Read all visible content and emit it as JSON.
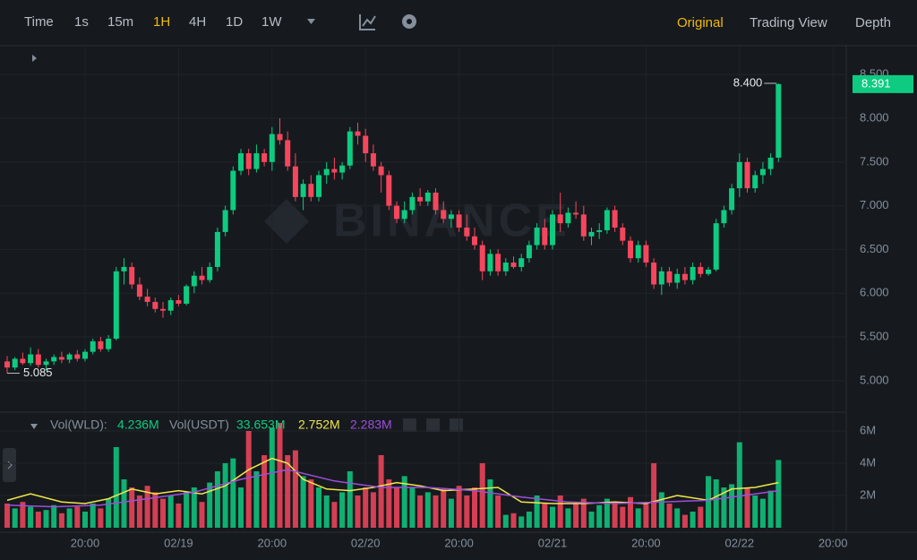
{
  "toolbar": {
    "intervals": [
      {
        "label": "Time"
      },
      {
        "label": "1s"
      },
      {
        "label": "15m"
      },
      {
        "label": "1H",
        "active": true
      },
      {
        "label": "4H"
      },
      {
        "label": "1D"
      },
      {
        "label": "1W"
      }
    ],
    "views": [
      {
        "label": "Original",
        "active": true
      },
      {
        "label": "Trading View"
      },
      {
        "label": "Depth"
      }
    ]
  },
  "chart_data": {
    "type": "candlestick",
    "watermark": "BINANCE",
    "up_color": "#0ecb81",
    "down_color": "#f6465d",
    "grid": true,
    "xlim": [
      -0.92,
      107.7
    ],
    "xticks": [
      {
        "value": 10,
        "label": "20:00"
      },
      {
        "value": 22,
        "label": "02/19"
      },
      {
        "value": 34,
        "label": "20:00"
      },
      {
        "value": 46,
        "label": "02/20"
      },
      {
        "value": 58,
        "label": "20:00"
      },
      {
        "value": 70,
        "label": "02/21"
      },
      {
        "value": 82,
        "label": "20:00"
      },
      {
        "value": 94,
        "label": "02/22"
      },
      {
        "value": 106,
        "label": "20:00"
      }
    ],
    "ylim": [
      4.66,
      8.82
    ],
    "yticks": [
      {
        "value": 5,
        "label": "5.000"
      },
      {
        "value": 5.5,
        "label": "5.500"
      },
      {
        "value": 6,
        "label": "6.000"
      },
      {
        "value": 6.5,
        "label": "6.500"
      },
      {
        "value": 7,
        "label": "7.000"
      },
      {
        "value": 7.5,
        "label": "7.500"
      },
      {
        "value": 8,
        "label": "8.000"
      },
      {
        "value": 8.5,
        "label": "8.500"
      }
    ],
    "candles": [
      [
        5.22,
        5.28,
        5.085,
        5.15
      ],
      [
        5.15,
        5.27,
        5.12,
        5.25
      ],
      [
        5.25,
        5.32,
        5.18,
        5.2
      ],
      [
        5.2,
        5.38,
        5.17,
        5.3
      ],
      [
        5.3,
        5.36,
        5.15,
        5.18
      ],
      [
        5.18,
        5.25,
        5.12,
        5.22
      ],
      [
        5.22,
        5.3,
        5.18,
        5.27
      ],
      [
        5.27,
        5.33,
        5.2,
        5.24
      ],
      [
        5.24,
        5.32,
        5.2,
        5.3
      ],
      [
        5.3,
        5.35,
        5.22,
        5.25
      ],
      [
        5.25,
        5.36,
        5.22,
        5.33
      ],
      [
        5.33,
        5.48,
        5.3,
        5.45
      ],
      [
        5.45,
        5.5,
        5.33,
        5.36
      ],
      [
        5.36,
        5.52,
        5.33,
        5.48
      ],
      [
        5.48,
        6.3,
        5.46,
        6.25
      ],
      [
        6.25,
        6.4,
        6.1,
        6.3
      ],
      [
        6.3,
        6.35,
        6.05,
        6.1
      ],
      [
        6.1,
        6.18,
        5.92,
        5.96
      ],
      [
        5.96,
        6.05,
        5.85,
        5.9
      ],
      [
        5.9,
        5.95,
        5.78,
        5.82
      ],
      [
        5.82,
        5.9,
        5.72,
        5.8
      ],
      [
        5.8,
        5.95,
        5.75,
        5.92
      ],
      [
        5.92,
        5.98,
        5.85,
        5.88
      ],
      [
        5.88,
        6.1,
        5.86,
        6.08
      ],
      [
        6.08,
        6.25,
        6.0,
        6.2
      ],
      [
        6.2,
        6.3,
        6.1,
        6.15
      ],
      [
        6.15,
        6.35,
        6.12,
        6.3
      ],
      [
        6.3,
        6.75,
        6.25,
        6.7
      ],
      [
        6.7,
        7.0,
        6.65,
        6.95
      ],
      [
        6.95,
        7.45,
        6.9,
        7.4
      ],
      [
        7.4,
        7.65,
        7.35,
        7.6
      ],
      [
        7.6,
        7.65,
        7.35,
        7.42
      ],
      [
        7.42,
        7.7,
        7.38,
        7.6
      ],
      [
        7.6,
        7.65,
        7.45,
        7.5
      ],
      [
        7.5,
        7.9,
        7.4,
        7.82
      ],
      [
        7.82,
        8.0,
        7.7,
        7.75
      ],
      [
        7.75,
        7.85,
        7.4,
        7.45
      ],
      [
        7.45,
        7.6,
        7.05,
        7.1
      ],
      [
        7.1,
        7.3,
        6.95,
        7.25
      ],
      [
        7.25,
        7.35,
        7.05,
        7.1
      ],
      [
        7.1,
        7.4,
        7.05,
        7.35
      ],
      [
        7.35,
        7.5,
        7.25,
        7.42
      ],
      [
        7.42,
        7.55,
        7.3,
        7.38
      ],
      [
        7.38,
        7.5,
        7.3,
        7.46
      ],
      [
        7.46,
        7.9,
        7.42,
        7.85
      ],
      [
        7.85,
        7.95,
        7.7,
        7.8
      ],
      [
        7.8,
        7.88,
        7.5,
        7.6
      ],
      [
        7.6,
        7.7,
        7.4,
        7.45
      ],
      [
        7.45,
        7.5,
        7.15,
        7.35
      ],
      [
        7.35,
        7.4,
        6.95,
        7.0
      ],
      [
        7.0,
        7.05,
        6.8,
        6.85
      ],
      [
        6.85,
        7.05,
        6.8,
        6.95
      ],
      [
        6.95,
        7.15,
        6.9,
        7.1
      ],
      [
        7.1,
        7.2,
        7.0,
        7.05
      ],
      [
        7.05,
        7.18,
        7.0,
        7.15
      ],
      [
        7.15,
        7.2,
        6.9,
        6.95
      ],
      [
        6.95,
        7.05,
        6.8,
        6.85
      ],
      [
        6.85,
        6.95,
        6.75,
        6.9
      ],
      [
        6.9,
        6.95,
        6.7,
        6.75
      ],
      [
        6.75,
        6.9,
        6.6,
        6.65
      ],
      [
        6.65,
        6.75,
        6.5,
        6.55
      ],
      [
        6.55,
        6.6,
        6.15,
        6.25
      ],
      [
        6.25,
        6.5,
        6.2,
        6.45
      ],
      [
        6.45,
        6.5,
        6.2,
        6.25
      ],
      [
        6.25,
        6.4,
        6.2,
        6.35
      ],
      [
        6.35,
        6.42,
        6.28,
        6.3
      ],
      [
        6.3,
        6.45,
        6.25,
        6.4
      ],
      [
        6.4,
        6.6,
        6.35,
        6.55
      ],
      [
        6.55,
        6.8,
        6.5,
        6.75
      ],
      [
        6.75,
        6.85,
        6.5,
        6.55
      ],
      [
        6.55,
        6.95,
        6.5,
        6.9
      ],
      [
        6.9,
        7.15,
        6.7,
        6.8
      ],
      [
        6.8,
        6.98,
        6.75,
        6.92
      ],
      [
        6.92,
        7.05,
        6.85,
        6.9
      ],
      [
        6.9,
        7.0,
        6.6,
        6.65
      ],
      [
        6.65,
        6.75,
        6.55,
        6.7
      ],
      [
        6.7,
        6.8,
        6.62,
        6.72
      ],
      [
        6.72,
        6.98,
        6.68,
        6.95
      ],
      [
        6.95,
        7.0,
        6.7,
        6.75
      ],
      [
        6.75,
        6.8,
        6.55,
        6.6
      ],
      [
        6.6,
        6.65,
        6.35,
        6.4
      ],
      [
        6.4,
        6.6,
        6.35,
        6.55
      ],
      [
        6.55,
        6.6,
        6.3,
        6.35
      ],
      [
        6.35,
        6.4,
        6.05,
        6.1
      ],
      [
        6.1,
        6.3,
        5.98,
        6.25
      ],
      [
        6.25,
        6.3,
        6.08,
        6.12
      ],
      [
        6.12,
        6.28,
        6.05,
        6.22
      ],
      [
        6.22,
        6.3,
        6.1,
        6.15
      ],
      [
        6.15,
        6.35,
        6.1,
        6.3
      ],
      [
        6.3,
        6.35,
        6.18,
        6.22
      ],
      [
        6.22,
        6.3,
        6.2,
        6.27
      ],
      [
        6.27,
        6.85,
        6.25,
        6.8
      ],
      [
        6.8,
        7.0,
        6.75,
        6.95
      ],
      [
        6.95,
        7.25,
        6.9,
        7.2
      ],
      [
        7.2,
        7.6,
        7.1,
        7.5
      ],
      [
        7.5,
        7.55,
        7.15,
        7.2
      ],
      [
        7.2,
        7.4,
        7.15,
        7.35
      ],
      [
        7.35,
        7.5,
        7.25,
        7.42
      ],
      [
        7.42,
        7.6,
        7.35,
        7.55
      ],
      [
        7.55,
        8.4,
        7.5,
        8.391
      ]
    ],
    "high_annotation": {
      "value": 8.4,
      "label": "8.400"
    },
    "low_annotation": {
      "value": 5.085,
      "label": "5.085"
    },
    "last_price": {
      "value": 8.391,
      "label": "8.391"
    },
    "volume": [
      1.5,
      1.2,
      1.6,
      1.3,
      1.0,
      1.1,
      1.4,
      0.9,
      1.2,
      1.3,
      1.0,
      1.5,
      1.2,
      1.8,
      5.0,
      3.0,
      2.5,
      2.0,
      2.6,
      2.2,
      1.8,
      2.0,
      1.5,
      2.2,
      2.5,
      1.6,
      2.8,
      3.5,
      4.0,
      4.3,
      2.5,
      6.0,
      3.5,
      4.5,
      6.2,
      6.5,
      4.5,
      4.8,
      3.2,
      3.0,
      2.5,
      2.0,
      1.6,
      2.2,
      3.5,
      2.0,
      2.5,
      2.2,
      4.5,
      3.0,
      2.5,
      3.2,
      2.5,
      2.0,
      2.2,
      2.0,
      2.4,
      1.8,
      2.6,
      2.0,
      2.5,
      4.0,
      3.0,
      2.0,
      0.8,
      0.9,
      0.7,
      1.0,
      2.0,
      1.5,
      1.3,
      2.0,
      1.2,
      1.6,
      1.8,
      1.0,
      1.4,
      1.8,
      1.6,
      1.3,
      1.9,
      1.2,
      1.5,
      4.0,
      2.2,
      1.5,
      1.2,
      0.8,
      1.0,
      1.3,
      3.2,
      3.0,
      2.5,
      2.7,
      5.3,
      2.5,
      2.0,
      1.8,
      2.3,
      4.2
    ],
    "vol_ylim": [
      0,
      7.0
    ],
    "vol_yticks": [
      {
        "value": 2,
        "label": "2M"
      },
      {
        "value": 4,
        "label": "4M"
      },
      {
        "value": 6,
        "label": "6M"
      }
    ],
    "vol_ma": [
      {
        "color": "#f0e64a",
        "x": [
          0,
          3,
          7,
          10,
          13,
          16,
          19,
          22,
          25,
          28,
          31,
          34,
          36,
          38,
          41,
          44,
          47,
          50,
          53,
          56,
          60,
          63,
          66,
          70,
          74,
          78,
          82,
          86,
          90,
          93,
          96,
          99
        ],
        "values": [
          1.7,
          2.1,
          1.6,
          1.5,
          1.8,
          2.4,
          2.1,
          2.3,
          2.1,
          2.6,
          3.6,
          4.3,
          4.0,
          3.0,
          2.4,
          2.3,
          2.5,
          2.8,
          2.6,
          2.3,
          2.4,
          2.5,
          1.6,
          1.5,
          1.5,
          1.6,
          1.5,
          2.0,
          1.7,
          2.4,
          2.5,
          2.8
        ]
      },
      {
        "color": "#9d4edd",
        "x": [
          0,
          6,
          12,
          18,
          24,
          30,
          36,
          42,
          48,
          54,
          60,
          66,
          72,
          78,
          84,
          90,
          96,
          99
        ],
        "values": [
          1.4,
          1.3,
          1.4,
          1.8,
          2.2,
          3.0,
          3.6,
          2.9,
          2.5,
          2.5,
          2.3,
          1.9,
          1.6,
          1.5,
          1.6,
          1.7,
          2.1,
          2.3
        ]
      }
    ],
    "legend": {
      "vol_label": "Vol(WLD):",
      "vol_value": "4.236M",
      "usdt_label": "Vol(USDT)",
      "usdt_value": "33.653M",
      "ma1_value": "2.752M",
      "ma2_value": "2.283M"
    }
  }
}
